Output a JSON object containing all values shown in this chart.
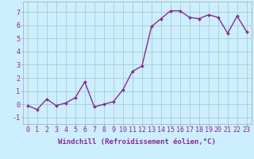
{
  "x": [
    0,
    1,
    2,
    3,
    4,
    5,
    6,
    7,
    8,
    9,
    10,
    11,
    12,
    13,
    14,
    15,
    16,
    17,
    18,
    19,
    20,
    21,
    22,
    23
  ],
  "y": [
    -0.1,
    -0.4,
    0.4,
    -0.1,
    0.1,
    0.5,
    1.7,
    -0.2,
    0.0,
    0.2,
    1.1,
    2.5,
    2.9,
    5.9,
    6.5,
    7.1,
    7.1,
    6.6,
    6.5,
    6.8,
    6.6,
    5.4,
    6.7,
    5.5
  ],
  "line_color": "#862d8b",
  "marker": "D",
  "markersize": 2.0,
  "linewidth": 1.0,
  "bg_color": "#cceeff",
  "grid_color": "#aacccc",
  "xlabel": "Windchill (Refroidissement éolien,°C)",
  "xlabel_fontsize": 6.5,
  "tick_fontsize": 6,
  "xlim": [
    -0.5,
    23.5
  ],
  "ylim": [
    -1.5,
    7.8
  ],
  "yticks": [
    -1,
    0,
    1,
    2,
    3,
    4,
    5,
    6,
    7
  ],
  "xticks": [
    0,
    1,
    2,
    3,
    4,
    5,
    6,
    7,
    8,
    9,
    10,
    11,
    12,
    13,
    14,
    15,
    16,
    17,
    18,
    19,
    20,
    21,
    22,
    23
  ]
}
